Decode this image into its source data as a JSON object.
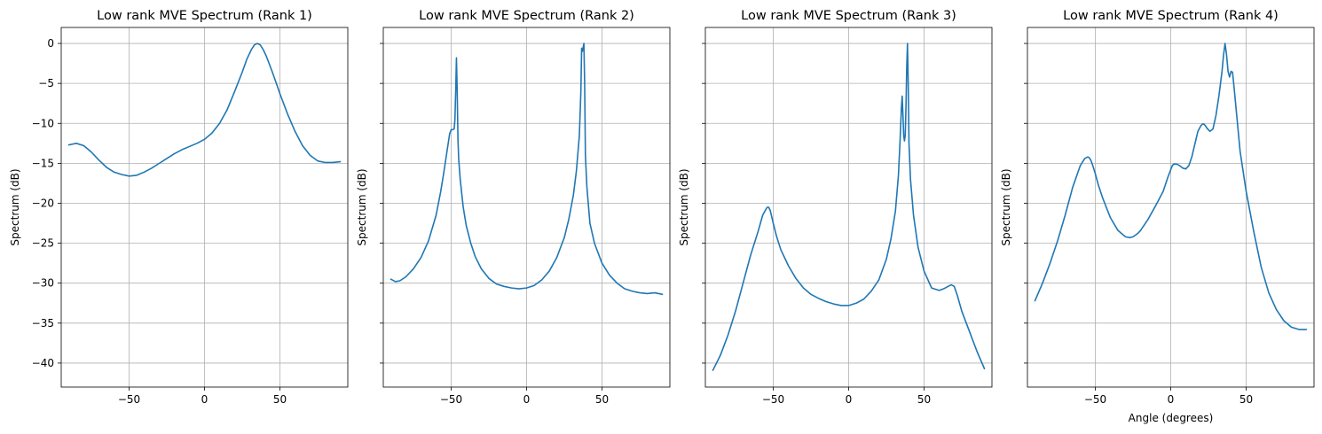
{
  "chart_data": [
    {
      "type": "line",
      "title": "Low rank MVE Spectrum (Rank 1)",
      "xlabel": "",
      "ylabel": "Spectrum (dB)",
      "xlim": [
        -95,
        95
      ],
      "ylim": [
        -43,
        2
      ],
      "xticks": [
        -50,
        0,
        50
      ],
      "xtick_labels": [
        "−50",
        "0",
        "50"
      ],
      "yticks": [
        0,
        -5,
        -10,
        -15,
        -20,
        -25,
        -30,
        -35,
        -40
      ],
      "ytick_labels": [
        "0",
        "−5",
        "−10",
        "−15",
        "−20",
        "−25",
        "−30",
        "−35",
        "−40"
      ],
      "grid": true,
      "color": "#1f77b4",
      "series": [
        {
          "x": [
            -90,
            -85,
            -80,
            -75,
            -70,
            -65,
            -60,
            -55,
            -50,
            -45,
            -40,
            -35,
            -30,
            -25,
            -20,
            -15,
            -10,
            -5,
            0,
            5,
            10,
            15,
            20,
            25,
            28,
            31,
            33,
            35,
            37,
            39,
            41,
            43,
            45,
            48,
            50,
            55,
            60,
            65,
            70,
            75,
            80,
            85,
            90
          ],
          "y": [
            -12.7,
            -12.5,
            -12.8,
            -13.6,
            -14.6,
            -15.5,
            -16.1,
            -16.4,
            -16.6,
            -16.5,
            -16.1,
            -15.6,
            -15.0,
            -14.4,
            -13.8,
            -13.3,
            -12.9,
            -12.5,
            -12.0,
            -11.2,
            -10.0,
            -8.3,
            -6.0,
            -3.6,
            -2.0,
            -0.8,
            -0.2,
            0.0,
            -0.2,
            -0.8,
            -1.6,
            -2.6,
            -3.6,
            -5.2,
            -6.3,
            -8.8,
            -11.0,
            -12.8,
            -14.0,
            -14.7,
            -14.9,
            -14.9,
            -14.8
          ]
        }
      ]
    },
    {
      "type": "line",
      "title": "Low rank MVE Spectrum (Rank 2)",
      "xlabel": "",
      "ylabel": "Spectrum (dB)",
      "xlim": [
        -95,
        95
      ],
      "ylim": [
        -43,
        2
      ],
      "xticks": [
        -50,
        0,
        50
      ],
      "xtick_labels": [
        "−50",
        "0",
        "50"
      ],
      "yticks": [
        0,
        -5,
        -10,
        -15,
        -20,
        -25,
        -30,
        -35,
        -40
      ],
      "ytick_labels": [
        "",
        "",
        "",
        "",
        "",
        "",
        "",
        "",
        ""
      ],
      "grid": true,
      "color": "#1f77b4",
      "series": [
        {
          "x": [
            -90,
            -87,
            -84,
            -80,
            -75,
            -70,
            -65,
            -60,
            -57,
            -55,
            -53,
            -51,
            -50,
            -49,
            -48,
            -47.5,
            -47,
            -46.5,
            -46,
            -45.5,
            -45,
            -44,
            -42,
            -40,
            -37,
            -34,
            -30,
            -25,
            -20,
            -15,
            -10,
            -5,
            0,
            5,
            10,
            15,
            20,
            25,
            28,
            31,
            33,
            35,
            36,
            36.5,
            37,
            37.5,
            38,
            38.5,
            39,
            40,
            42,
            45,
            50,
            55,
            60,
            65,
            70,
            75,
            80,
            85,
            90
          ],
          "y": [
            -29.5,
            -29.8,
            -29.7,
            -29.2,
            -28.2,
            -26.8,
            -24.7,
            -21.5,
            -18.6,
            -16.3,
            -13.8,
            -11.3,
            -10.8,
            -10.8,
            -10.7,
            -9.5,
            -6.0,
            -1.8,
            -6.0,
            -12.0,
            -14.5,
            -17.0,
            -20.5,
            -22.8,
            -25.0,
            -26.7,
            -28.2,
            -29.4,
            -30.1,
            -30.4,
            -30.6,
            -30.7,
            -30.6,
            -30.3,
            -29.6,
            -28.5,
            -26.8,
            -24.3,
            -22.0,
            -19.0,
            -16.0,
            -11.5,
            -6.0,
            -0.6,
            -1.0,
            -0.5,
            0.0,
            -5.0,
            -14.0,
            -18.0,
            -22.5,
            -25.0,
            -27.5,
            -29.0,
            -30.0,
            -30.7,
            -31.0,
            -31.2,
            -31.3,
            -31.2,
            -31.4
          ]
        }
      ]
    },
    {
      "type": "line",
      "title": "Low rank MVE Spectrum (Rank 3)",
      "xlabel": "",
      "ylabel": "Spectrum (dB)",
      "xlim": [
        -95,
        95
      ],
      "ylim": [
        -43,
        2
      ],
      "xticks": [
        -50,
        0,
        50
      ],
      "xtick_labels": [
        "−50",
        "0",
        "50"
      ],
      "yticks": [
        0,
        -5,
        -10,
        -15,
        -20,
        -25,
        -30,
        -35,
        -40
      ],
      "ytick_labels": [
        "",
        "",
        "",
        "",
        "",
        "",
        "",
        "",
        ""
      ],
      "grid": true,
      "color": "#1f77b4",
      "series": [
        {
          "x": [
            -90,
            -85,
            -80,
            -75,
            -70,
            -65,
            -60,
            -57,
            -55,
            -54,
            -53,
            -52,
            -51,
            -50,
            -48,
            -45,
            -40,
            -35,
            -30,
            -25,
            -20,
            -15,
            -10,
            -5,
            0,
            5,
            10,
            15,
            20,
            25,
            28,
            31,
            33,
            34,
            35,
            35.5,
            36,
            36.5,
            37,
            37.5,
            38,
            38.5,
            39,
            39.5,
            40,
            41,
            43,
            46,
            50,
            55,
            60,
            63,
            65,
            68,
            70,
            72,
            75,
            80,
            85,
            90
          ],
          "y": [
            -40.9,
            -39.0,
            -36.5,
            -33.5,
            -30.0,
            -26.5,
            -23.5,
            -21.5,
            -20.8,
            -20.5,
            -20.5,
            -20.9,
            -21.7,
            -22.5,
            -24.0,
            -25.8,
            -27.8,
            -29.4,
            -30.6,
            -31.4,
            -31.9,
            -32.3,
            -32.6,
            -32.8,
            -32.8,
            -32.5,
            -32.0,
            -31.0,
            -29.6,
            -27.0,
            -24.5,
            -21.0,
            -16.5,
            -12.5,
            -8.0,
            -6.6,
            -9.0,
            -11.5,
            -12.2,
            -11.5,
            -8.0,
            -3.0,
            0.0,
            -5.0,
            -12.5,
            -17.0,
            -21.5,
            -25.5,
            -28.5,
            -30.6,
            -30.9,
            -30.7,
            -30.5,
            -30.2,
            -30.4,
            -31.5,
            -33.5,
            -36.0,
            -38.5,
            -40.7
          ]
        }
      ]
    },
    {
      "type": "line",
      "title": "Low rank MVE Spectrum (Rank 4)",
      "xlabel": "Angle (degrees)",
      "ylabel": "Spectrum (dB)",
      "xlim": [
        -95,
        95
      ],
      "ylim": [
        -43,
        2
      ],
      "xticks": [
        -50,
        0,
        50
      ],
      "xtick_labels": [
        "−50",
        "0",
        "50"
      ],
      "yticks": [
        0,
        -5,
        -10,
        -15,
        -20,
        -25,
        -30,
        -35,
        -40
      ],
      "ytick_labels": [
        "",
        "",
        "",
        "",
        "",
        "",
        "",
        "",
        ""
      ],
      "grid": true,
      "color": "#1f77b4",
      "series": [
        {
          "x": [
            -90,
            -85,
            -80,
            -75,
            -70,
            -65,
            -60,
            -57,
            -55,
            -54,
            -53,
            -52,
            -50,
            -48,
            -45,
            -40,
            -35,
            -30,
            -27,
            -25,
            -22,
            -20,
            -15,
            -10,
            -5,
            -2,
            0,
            1,
            2,
            4,
            6,
            8,
            10,
            12,
            14,
            16,
            18,
            20,
            21,
            22,
            23,
            24,
            26,
            28,
            30,
            32,
            34,
            35,
            36,
            37,
            38,
            39,
            40,
            41,
            42,
            44,
            46,
            50,
            55,
            60,
            65,
            70,
            75,
            80,
            85,
            90
          ],
          "y": [
            -32.2,
            -30.0,
            -27.5,
            -24.7,
            -21.5,
            -18.0,
            -15.3,
            -14.4,
            -14.2,
            -14.3,
            -14.6,
            -15.1,
            -16.3,
            -17.7,
            -19.4,
            -21.8,
            -23.4,
            -24.2,
            -24.3,
            -24.2,
            -23.8,
            -23.4,
            -22.0,
            -20.3,
            -18.5,
            -16.8,
            -15.8,
            -15.3,
            -15.1,
            -15.1,
            -15.3,
            -15.6,
            -15.7,
            -15.3,
            -14.2,
            -12.6,
            -11.0,
            -10.3,
            -10.1,
            -10.1,
            -10.3,
            -10.6,
            -11.0,
            -10.7,
            -9.0,
            -6.5,
            -3.5,
            -1.5,
            0.0,
            -1.4,
            -3.5,
            -4.2,
            -3.5,
            -3.6,
            -5.5,
            -9.5,
            -13.5,
            -18.5,
            -23.5,
            -28.0,
            -31.2,
            -33.3,
            -34.7,
            -35.5,
            -35.8,
            -35.8
          ]
        }
      ]
    }
  ]
}
